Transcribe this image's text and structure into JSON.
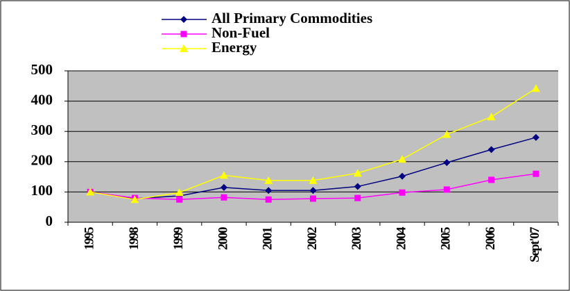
{
  "chart_data": {
    "type": "line",
    "categories": [
      "1995",
      "1998",
      "1999",
      "2000",
      "2001",
      "2002",
      "2003",
      "2004",
      "2005",
      "2006",
      "Sept'07"
    ],
    "series": [
      {
        "name": "All Primary Commodities",
        "color": "#000080",
        "marker": "diamond",
        "values": [
          100,
          78,
          87,
          115,
          105,
          105,
          118,
          152,
          197,
          240,
          280
        ]
      },
      {
        "name": "Non-Fuel",
        "color": "#ff00ff",
        "marker": "square",
        "values": [
          100,
          80,
          75,
          82,
          75,
          78,
          80,
          98,
          108,
          140,
          160
        ]
      },
      {
        "name": "Energy",
        "color": "#ffff00",
        "marker": "triangle",
        "values": [
          100,
          75,
          98,
          155,
          138,
          138,
          162,
          208,
          290,
          348,
          442
        ]
      }
    ],
    "ylim": [
      0,
      500
    ],
    "yticks": [
      0,
      100,
      200,
      300,
      400,
      500
    ],
    "grid": true
  }
}
